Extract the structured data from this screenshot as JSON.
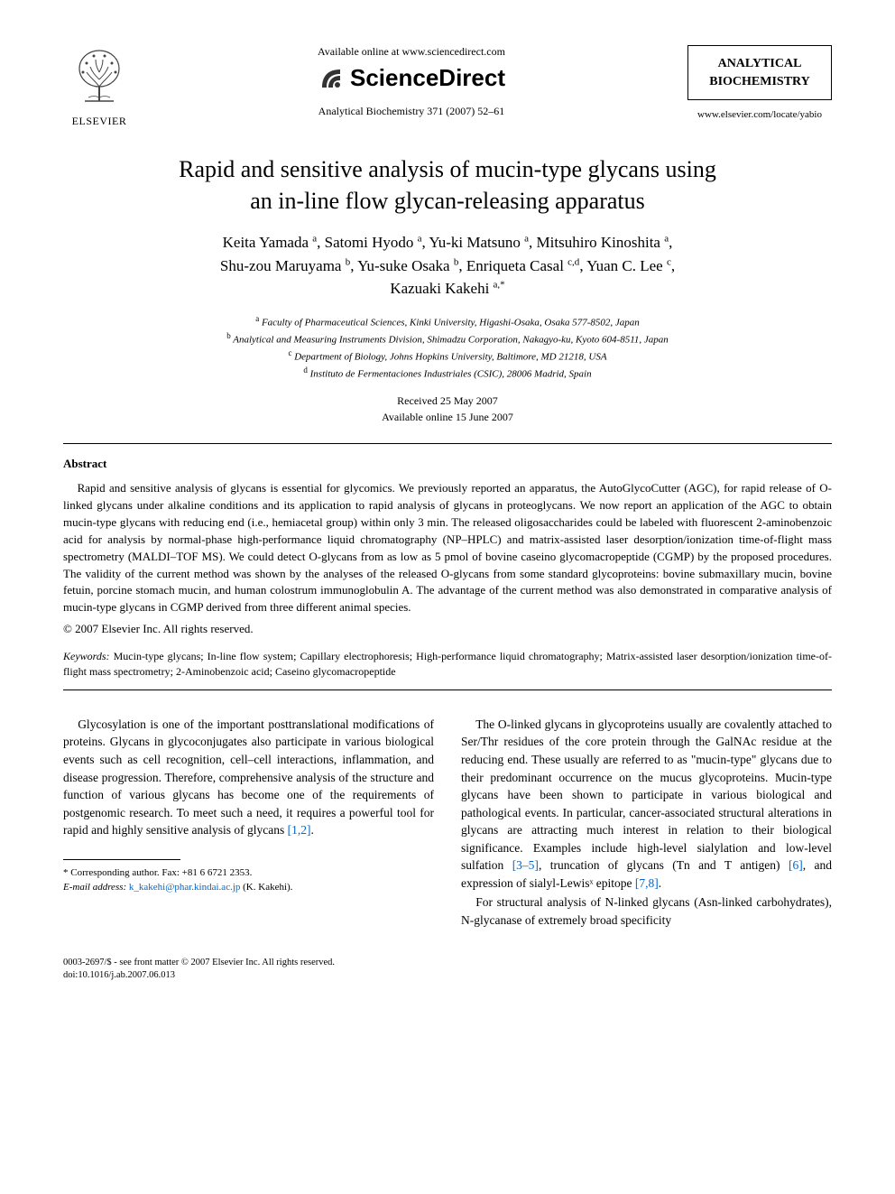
{
  "header": {
    "elsevier_label": "ELSEVIER",
    "available_online": "Available online at www.sciencedirect.com",
    "sciencedirect": "ScienceDirect",
    "citation": "Analytical Biochemistry 371 (2007) 52–61",
    "journal_box_line1": "ANALYTICAL",
    "journal_box_line2": "BIOCHEMISTRY",
    "journal_url": "www.elsevier.com/locate/yabio"
  },
  "title": {
    "line1": "Rapid and sensitive analysis of mucin-type glycans using",
    "line2": "an in-line flow glycan-releasing apparatus"
  },
  "authors": {
    "line1_html": "Keita Yamada <sup>a</sup>, Satomi Hyodo <sup>a</sup>, Yu-ki Matsuno <sup>a</sup>, Mitsuhiro Kinoshita <sup>a</sup>,",
    "line2_html": "Shu-zou Maruyama <sup>b</sup>, Yu-suke Osaka <sup>b</sup>, Enriqueta Casal <sup>c,d</sup>, Yuan C. Lee <sup>c</sup>,",
    "line3_html": "Kazuaki Kakehi <sup>a,*</sup>"
  },
  "affiliations": {
    "a": "Faculty of Pharmaceutical Sciences, Kinki University, Higashi-Osaka, Osaka 577-8502, Japan",
    "b": "Analytical and Measuring Instruments Division, Shimadzu Corporation, Nakagyo-ku, Kyoto 604-8511, Japan",
    "c": "Department of Biology, Johns Hopkins University, Baltimore, MD 21218, USA",
    "d": "Instituto de Fermentaciones Industriales (CSIC), 28006 Madrid, Spain"
  },
  "dates": {
    "received": "Received 25 May 2007",
    "online": "Available online 15 June 2007"
  },
  "abstract": {
    "heading": "Abstract",
    "body": "Rapid and sensitive analysis of glycans is essential for glycomics. We previously reported an apparatus, the AutoGlycoCutter (AGC), for rapid release of O-linked glycans under alkaline conditions and its application to rapid analysis of glycans in proteoglycans. We now report an application of the AGC to obtain mucin-type glycans with reducing end (i.e., hemiacetal group) within only 3 min. The released oligosaccharides could be labeled with fluorescent 2-aminobenzoic acid for analysis by normal-phase high-performance liquid chromatography (NP–HPLC) and matrix-assisted laser desorption/ionization time-of-flight mass spectrometry (MALDI–TOF MS). We could detect O-glycans from as low as 5 pmol of bovine caseino glycomacropeptide (CGMP) by the proposed procedures. The validity of the current method was shown by the analyses of the released O-glycans from some standard glycoproteins: bovine submaxillary mucin, bovine fetuin, porcine stomach mucin, and human colostrum immunoglobulin A. The advantage of the current method was also demonstrated in comparative analysis of mucin-type glycans in CGMP derived from three different animal species.",
    "copyright": "© 2007 Elsevier Inc. All rights reserved."
  },
  "keywords": {
    "label": "Keywords:",
    "text": "Mucin-type glycans; In-line flow system; Capillary electrophoresis; High-performance liquid chromatography; Matrix-assisted laser desorption/ionization time-of-flight mass spectrometry; 2-Aminobenzoic acid; Caseino glycomacropeptide"
  },
  "body": {
    "col1_p1": "Glycosylation is one of the important posttranslational modifications of proteins. Glycans in glycoconjugates also participate in various biological events such as cell recognition, cell–cell interactions, inflammation, and disease progression. Therefore, comprehensive analysis of the structure and function of various glycans has become one of the requirements of postgenomic research. To meet such a need, it requires a powerful tool for rapid and highly sensitive analysis of glycans ",
    "col1_ref1": "[1,2]",
    "col1_end": ".",
    "col2_p1": "The O-linked glycans in glycoproteins usually are covalently attached to Ser/Thr residues of the core protein through the GalNAc residue at the reducing end. These usually are referred to as \"mucin-type\" glycans due to their predominant occurrence on the mucus glycoproteins. Mucin-type glycans have been shown to participate in various biological and pathological events. In particular, cancer-associated structural alterations in glycans are attracting much interest in relation to their biological significance. Examples include high-level sialylation and low-level sulfation ",
    "col2_ref1": "[3–5]",
    "col2_mid1": ", truncation of glycans (Tn and T antigen) ",
    "col2_ref2": "[6]",
    "col2_mid2": ", and expression of sialyl-Lewisˣ epitope ",
    "col2_ref3": "[7,8]",
    "col2_end1": ".",
    "col2_p2": "For structural analysis of N-linked glycans (Asn-linked carbohydrates), N-glycanase of extremely broad specificity"
  },
  "footnotes": {
    "corr": "* Corresponding author. Fax: +81 6 6721 2353.",
    "email_label": "E-mail address:",
    "email": "k_kakehi@phar.kindai.ac.jp",
    "email_suffix": "(K. Kakehi)."
  },
  "footer": {
    "line1": "0003-2697/$ - see front matter © 2007 Elsevier Inc. All rights reserved.",
    "line2": "doi:10.1016/j.ab.2007.06.013"
  },
  "colors": {
    "link": "#0066cc",
    "text": "#000000",
    "background": "#ffffff"
  }
}
